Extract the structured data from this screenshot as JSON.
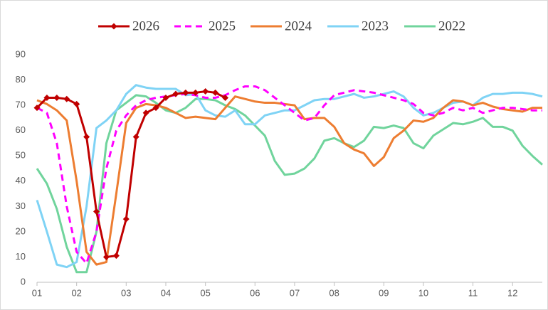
{
  "chart_data": {
    "type": "line",
    "categories": [
      "01",
      null,
      null,
      null,
      "02",
      null,
      null,
      null,
      null,
      "03",
      null,
      null,
      null,
      "04",
      null,
      null,
      null,
      "05",
      null,
      null,
      null,
      null,
      "06",
      null,
      null,
      null,
      "07",
      null,
      null,
      null,
      "08",
      null,
      null,
      null,
      null,
      "09",
      null,
      null,
      null,
      "10",
      null,
      null,
      null,
      null,
      "11",
      null,
      null,
      null,
      "12",
      null,
      null,
      null
    ],
    "series": [
      {
        "name": "2026",
        "color": "#c00000",
        "marker": "diamond",
        "values": [
          69,
          73,
          73,
          72.5,
          70.5,
          57.5,
          28,
          10,
          10.5,
          25,
          57.5,
          67,
          69,
          73,
          74.5,
          75,
          75,
          75.5,
          75,
          73,
          null,
          null,
          null,
          null,
          null,
          null,
          null,
          null,
          null,
          null,
          null,
          null,
          null,
          null,
          null,
          null,
          null,
          null,
          null,
          null,
          null,
          null,
          null,
          null,
          null,
          null,
          null,
          null,
          null,
          null,
          null,
          null
        ]
      },
      {
        "name": "2025",
        "color": "#ff00ff",
        "dash": true,
        "values": [
          69,
          67,
          55,
          30,
          12,
          7.5,
          20,
          45,
          60,
          66,
          70,
          72,
          73,
          73.5,
          74,
          74.5,
          74,
          73,
          73,
          74,
          76,
          77.5,
          77.5,
          76,
          73,
          70,
          67,
          64,
          65,
          70,
          74,
          75,
          76,
          75.5,
          75,
          74,
          73,
          72,
          70.5,
          67,
          66,
          67,
          69,
          68,
          69,
          67,
          68,
          69,
          69,
          68.5,
          68,
          68
        ]
      },
      {
        "name": "2024",
        "color": "#ed7d31",
        "values": [
          72,
          70.5,
          68,
          64,
          40,
          12,
          7,
          8,
          35,
          63,
          69,
          70.5,
          70,
          69,
          67,
          65,
          65.5,
          65,
          64.5,
          69,
          73.5,
          72.5,
          71.5,
          71,
          71,
          70.5,
          70,
          64.5,
          65,
          65,
          61.5,
          55,
          52.5,
          51,
          46,
          49.5,
          57,
          60,
          64,
          63.5,
          65,
          69,
          72,
          71.5,
          70,
          71,
          69.5,
          68.5,
          68,
          67.5,
          69,
          69
        ]
      },
      {
        "name": "2023",
        "color": "#7fd3f5",
        "values": [
          32.5,
          20,
          7,
          6,
          8,
          30,
          61,
          64,
          68,
          74.5,
          78,
          77,
          76.5,
          76.5,
          76.5,
          74,
          74.5,
          68,
          66,
          65.5,
          68,
          62.5,
          62.5,
          66,
          67,
          68,
          68,
          70,
          72,
          72.5,
          72.5,
          73.5,
          74.5,
          73,
          73.5,
          74.5,
          75.5,
          73.5,
          69,
          66,
          67,
          69,
          71,
          71.5,
          70,
          73,
          74.5,
          74.5,
          75,
          75,
          74.5,
          73.5
        ]
      },
      {
        "name": "2022",
        "color": "#70d49c",
        "values": [
          45,
          39,
          29,
          14,
          4,
          4,
          20,
          55,
          68,
          71,
          74,
          73.5,
          71,
          68,
          67,
          69,
          72.5,
          72.5,
          72,
          70,
          68.5,
          66,
          62,
          58,
          48,
          42.5,
          43,
          45,
          49,
          56,
          57,
          55,
          53.5,
          56,
          61.5,
          61,
          62,
          61,
          55,
          53,
          58,
          60.5,
          63,
          62.5,
          63.5,
          65,
          61.5,
          61.5,
          60,
          54,
          50,
          46.5
        ]
      }
    ],
    "ylim": [
      0,
      90
    ],
    "yticks": [
      0,
      10,
      20,
      30,
      40,
      50,
      60,
      70,
      80,
      90
    ],
    "grid": false
  }
}
